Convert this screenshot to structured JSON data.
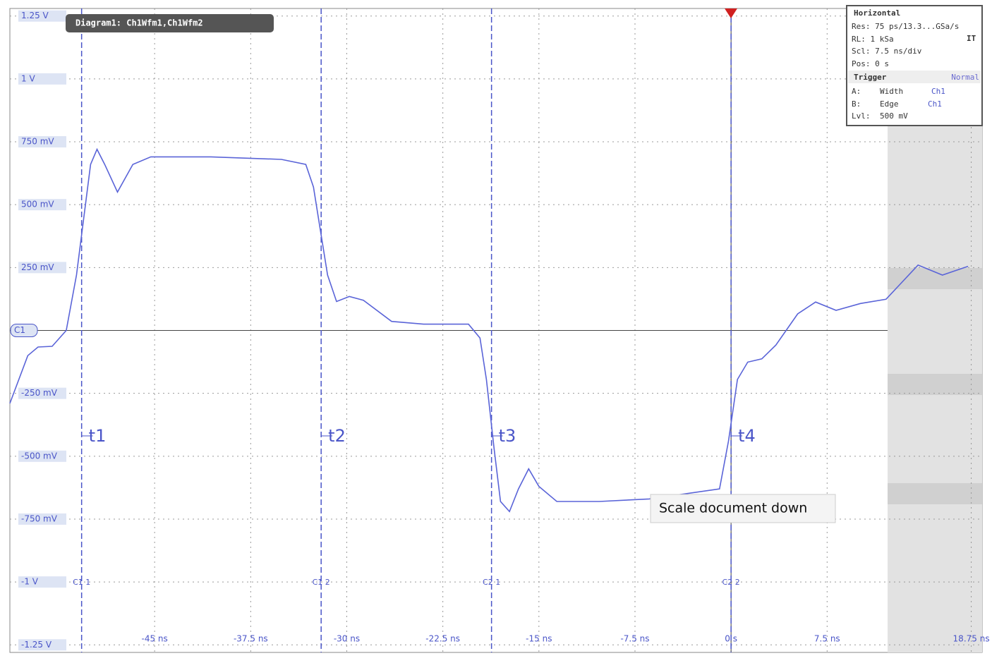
{
  "chart_data": {
    "type": "line",
    "xlim": [
      -56.3,
      19.6
    ],
    "ylim": [
      -1.28,
      1.28
    ],
    "xticks": [
      {
        "value": -45,
        "label": "-45 ns"
      },
      {
        "value": -37.5,
        "label": "-37.5 ns"
      },
      {
        "value": -30,
        "label": "-30 ns"
      },
      {
        "value": -22.5,
        "label": "-22.5 ns"
      },
      {
        "value": -15,
        "label": "-15 ns"
      },
      {
        "value": -7.5,
        "label": "-7.5 ns"
      },
      {
        "value": 0,
        "label": "0 s"
      },
      {
        "value": 7.5,
        "label": "7.5 ns"
      },
      {
        "value": 18.75,
        "label": "18.75 ns"
      }
    ],
    "yticks": [
      {
        "value": 1.25,
        "label": "1.25 V"
      },
      {
        "value": 1,
        "label": "1 V"
      },
      {
        "value": 0.75,
        "label": "750 mV"
      },
      {
        "value": 0.5,
        "label": "500 mV"
      },
      {
        "value": 0.25,
        "label": "250 mV"
      },
      {
        "value": -0.25,
        "label": "-250 mV"
      },
      {
        "value": -0.5,
        "label": "-500 mV"
      },
      {
        "value": -0.75,
        "label": "-750 mV"
      },
      {
        "value": -1,
        "label": "-1 V"
      },
      {
        "value": -1.25,
        "label": "-1.25 V"
      }
    ],
    "grid": true,
    "series": [
      {
        "color": "#5a64d8",
        "x": [
          -56.3,
          -54.9,
          -54.1,
          -53.0,
          -51.9,
          -51.1,
          -50.5,
          -50.0,
          -49.5,
          -48.9,
          -47.9,
          -46.7,
          -45.3,
          -40.6,
          -35.1,
          -33.2,
          -32.6,
          -32.1,
          -31.5,
          -30.8,
          -29.8,
          -28.7,
          -26.5,
          -24.0,
          -20.5,
          -19.6,
          -19.1,
          -18.5,
          -18.0,
          -17.3,
          -16.6,
          -15.8,
          -15.0,
          -13.6,
          -10.3,
          -6.4,
          -0.9,
          -0.2,
          0.5,
          1.3,
          2.4,
          3.5,
          5.2,
          6.6,
          8.2,
          10.1,
          12.1,
          14.6,
          16.5,
          18.5
        ],
        "values": [
          -0.29,
          -0.1,
          -0.066,
          -0.063,
          0,
          0.22,
          0.46,
          0.66,
          0.72,
          0.66,
          0.55,
          0.66,
          0.69,
          0.69,
          0.68,
          0.66,
          0.57,
          0.41,
          0.22,
          0.115,
          0.135,
          0.12,
          0.036,
          0.025,
          0.025,
          -0.03,
          -0.195,
          -0.47,
          -0.68,
          -0.72,
          -0.63,
          -0.55,
          -0.62,
          -0.68,
          -0.68,
          -0.67,
          -0.63,
          -0.44,
          -0.195,
          -0.126,
          -0.113,
          -0.058,
          0.066,
          0.113,
          0.08,
          0.107,
          0.124,
          0.26,
          0.22,
          0.255
        ]
      }
    ],
    "cursors": [
      {
        "label": "t1",
        "x": -50.7,
        "marker": "C1 1"
      },
      {
        "label": "t2",
        "x": -32.0,
        "marker": "C1 2"
      },
      {
        "label": "t3",
        "x": -18.7,
        "marker": "C2 1"
      },
      {
        "label": "t4",
        "x": 0,
        "marker": "C2 2"
      }
    ],
    "channel_marker": "C1"
  },
  "diagram_label": "Diagram1: Ch1Wfm1,Ch1Wfm2",
  "panel": {
    "title": "Horizontal",
    "res": "Res: 75 ps/13.3...GSa/s",
    "mode": "IT",
    "rl": "RL: 1 kSa",
    "scl": "Scl: 7.5 ns/div",
    "pos": "Pos: 0 s",
    "trigger": "Trigger",
    "trigger_mode": "Normal",
    "rows": [
      [
        "A:",
        "Width",
        "Ch1"
      ],
      [
        "B:",
        "Edge",
        "Ch1"
      ],
      [
        "Lvl:",
        "500 mV"
      ]
    ]
  },
  "tooltip": "Scale document down"
}
